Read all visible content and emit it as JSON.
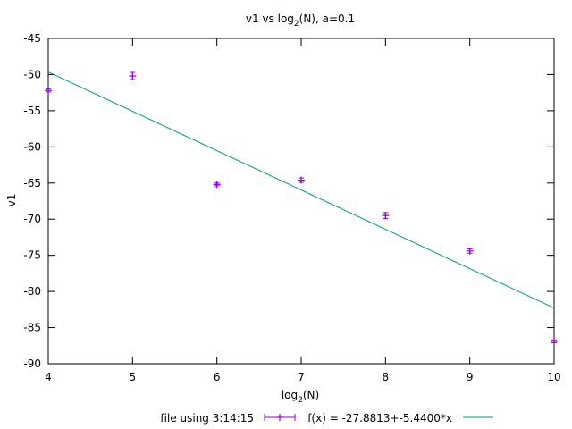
{
  "chart_data": {
    "type": "scatter",
    "title": {
      "prefix": "v1 vs log",
      "sub": "2",
      "suffix": "(N), a=0.1"
    },
    "xlabel": {
      "prefix": "log",
      "sub": "2",
      "suffix": "(N)"
    },
    "ylabel": "v1",
    "xlim": [
      4,
      10
    ],
    "ylim": [
      -90,
      -45
    ],
    "xticks": [
      4,
      5,
      6,
      7,
      8,
      9,
      10
    ],
    "yticks": [
      -90,
      -85,
      -80,
      -75,
      -70,
      -65,
      -60,
      -55,
      -50,
      -45
    ],
    "grid": false,
    "legend_position": "bottom",
    "series": [
      {
        "name": "file using 3:14:15",
        "style": "points-with-errorbars",
        "color": "#9400d3",
        "x": [
          4,
          5,
          6,
          7,
          8,
          9,
          10
        ],
        "y": [
          -52.2,
          -50.2,
          -65.2,
          -64.6,
          -69.5,
          -74.4,
          -86.9
        ],
        "yerr": [
          0.2,
          0.5,
          0.2,
          0.3,
          0.4,
          0.3,
          0.2
        ]
      },
      {
        "name": "f(x) = -27.8813+-5.4400*x",
        "style": "line",
        "color": "#009e73",
        "intercept": -27.8813,
        "slope": -5.44
      }
    ]
  }
}
